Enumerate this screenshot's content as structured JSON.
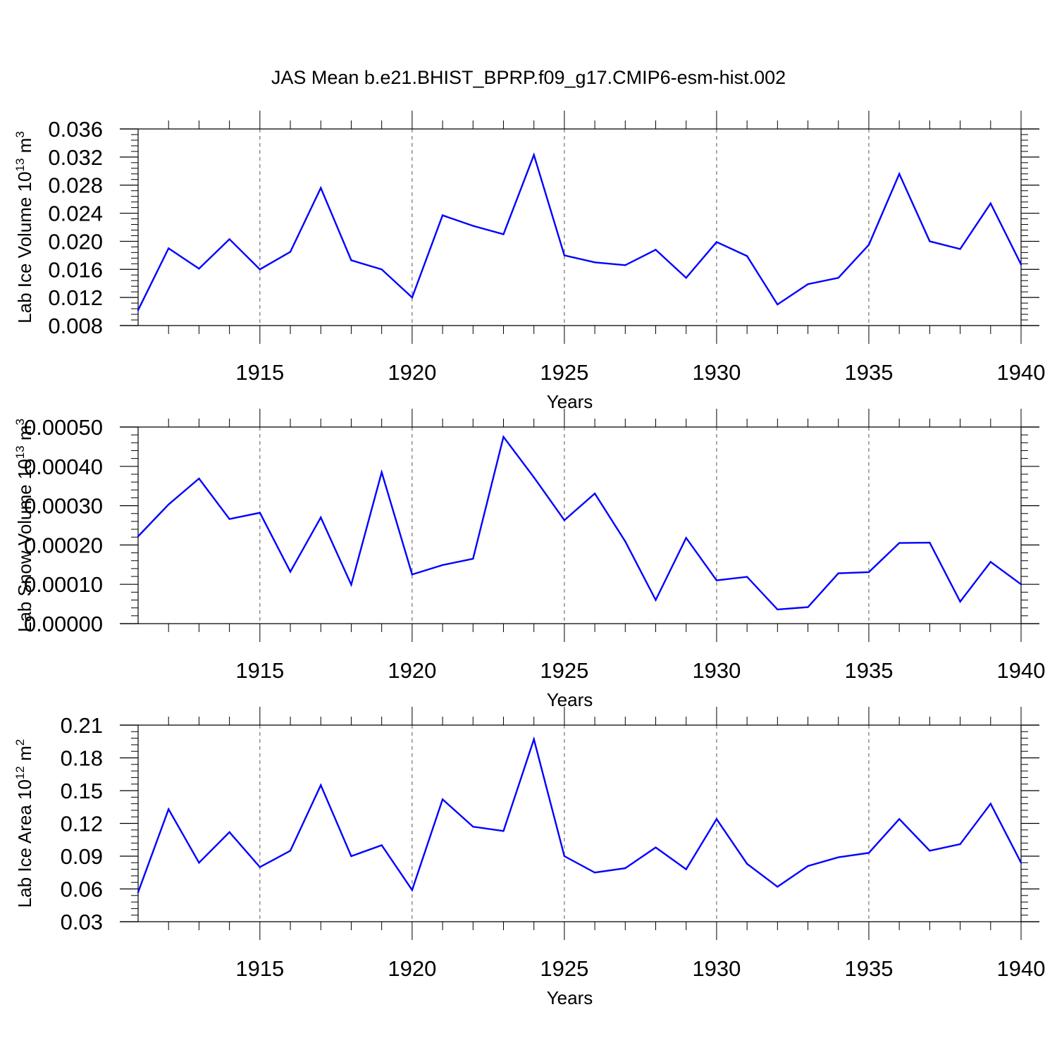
{
  "title": "JAS Mean b.e21.BHIST_BPRP.f09_g17.CMIP6-esm-hist.002",
  "colors": {
    "series": "#0000ff",
    "axes": "#000000",
    "grid": "#555555"
  },
  "chart_data": [
    {
      "type": "line",
      "title": "JAS Mean b.e21.BHIST_BPRP.f09_g17.CMIP6-esm-hist.002",
      "xlabel": "Years",
      "ylabel": {
        "text": "Lab Ice Volume 10",
        "sup": "13",
        "unit": " m",
        "unit_sup": "3"
      },
      "xlim": [
        1911,
        1940
      ],
      "ylim": [
        0.008,
        0.036
      ],
      "xticks": [
        1915,
        1920,
        1925,
        1930,
        1935,
        1940
      ],
      "xtick_labels": [
        "1915",
        "1920",
        "1925",
        "1930",
        "1935",
        "1940"
      ],
      "yticks": [
        0.008,
        0.012,
        0.016,
        0.02,
        0.024,
        0.028,
        0.032,
        0.036
      ],
      "ytick_labels": [
        "0.008",
        "0.012",
        "0.016",
        "0.020",
        "0.024",
        "0.028",
        "0.032",
        "0.036"
      ],
      "grid": "vertical dashed at major x ticks",
      "x": [
        1911,
        1912,
        1913,
        1914,
        1915,
        1916,
        1917,
        1918,
        1919,
        1920,
        1921,
        1922,
        1923,
        1924,
        1925,
        1926,
        1927,
        1928,
        1929,
        1930,
        1931,
        1932,
        1933,
        1934,
        1935,
        1936,
        1937,
        1938,
        1939,
        1940
      ],
      "series": [
        {
          "name": "Lab Ice Volume",
          "values": [
            0.0102,
            0.019,
            0.0161,
            0.0203,
            0.016,
            0.0185,
            0.0276,
            0.0173,
            0.016,
            0.012,
            0.0237,
            0.0222,
            0.021,
            0.0323,
            0.018,
            0.017,
            0.0166,
            0.0188,
            0.0148,
            0.0199,
            0.0179,
            0.011,
            0.0139,
            0.0148,
            0.0195,
            0.0296,
            0.02,
            0.0189,
            0.0254,
            0.0167
          ]
        }
      ]
    },
    {
      "type": "line",
      "xlabel": "Years",
      "ylabel": {
        "text": "Lab Snow Volume 10",
        "sup": "13",
        "unit": " m",
        "unit_sup": "3"
      },
      "xlim": [
        1911,
        1940
      ],
      "ylim": [
        0.0,
        0.0005
      ],
      "xticks": [
        1915,
        1920,
        1925,
        1930,
        1935,
        1940
      ],
      "xtick_labels": [
        "1915",
        "1920",
        "1925",
        "1930",
        "1935",
        "1940"
      ],
      "yticks": [
        0.0,
        0.0001,
        0.0002,
        0.0003,
        0.0004,
        0.0005
      ],
      "ytick_labels": [
        "0.00000",
        "0.00010",
        "0.00020",
        "0.00030",
        "0.00040",
        "0.00050"
      ],
      "grid": "vertical dashed at major x ticks",
      "x": [
        1911,
        1912,
        1913,
        1914,
        1915,
        1916,
        1917,
        1918,
        1919,
        1920,
        1921,
        1922,
        1923,
        1924,
        1925,
        1926,
        1927,
        1928,
        1929,
        1930,
        1931,
        1932,
        1933,
        1934,
        1935,
        1936,
        1937,
        1938,
        1939,
        1940
      ],
      "series": [
        {
          "name": "Lab Snow Volume",
          "values": [
            0.000222,
            0.000303,
            0.000369,
            0.000266,
            0.000282,
            0.000132,
            0.00027,
            9.9e-05,
            0.000385,
            0.000125,
            0.000149,
            0.000165,
            0.000475,
            0.000372,
            0.000263,
            0.000331,
            0.000209,
            6e-05,
            0.000218,
            0.00011,
            0.000119,
            3.6e-05,
            4.2e-05,
            0.000128,
            0.000131,
            0.000205,
            0.000206,
            5.6e-05,
            0.000157,
            0.0001
          ]
        }
      ]
    },
    {
      "type": "line",
      "xlabel": "Years",
      "ylabel": {
        "text": "Lab Ice Area 10",
        "sup": "12",
        "unit": " m",
        "unit_sup": "2"
      },
      "xlim": [
        1911,
        1940
      ],
      "ylim": [
        0.03,
        0.21
      ],
      "xticks": [
        1915,
        1920,
        1925,
        1930,
        1935,
        1940
      ],
      "xtick_labels": [
        "1915",
        "1920",
        "1925",
        "1930",
        "1935",
        "1940"
      ],
      "yticks": [
        0.03,
        0.06,
        0.09,
        0.12,
        0.15,
        0.18,
        0.21
      ],
      "ytick_labels": [
        "0.03",
        "0.06",
        "0.09",
        "0.12",
        "0.15",
        "0.18",
        "0.21"
      ],
      "grid": "vertical dashed at major x ticks",
      "x": [
        1911,
        1912,
        1913,
        1914,
        1915,
        1916,
        1917,
        1918,
        1919,
        1920,
        1921,
        1922,
        1923,
        1924,
        1925,
        1926,
        1927,
        1928,
        1929,
        1930,
        1931,
        1932,
        1933,
        1934,
        1935,
        1936,
        1937,
        1938,
        1939,
        1940
      ],
      "series": [
        {
          "name": "Lab Ice Area",
          "values": [
            0.057,
            0.133,
            0.084,
            0.112,
            0.08,
            0.095,
            0.155,
            0.09,
            0.1,
            0.059,
            0.142,
            0.117,
            0.113,
            0.197,
            0.09,
            0.075,
            0.079,
            0.098,
            0.078,
            0.124,
            0.083,
            0.062,
            0.081,
            0.089,
            0.093,
            0.124,
            0.095,
            0.101,
            0.138,
            0.084
          ]
        }
      ]
    }
  ]
}
